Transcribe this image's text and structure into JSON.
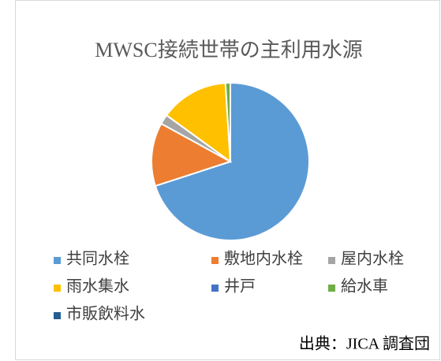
{
  "chart_data": {
    "type": "pie",
    "title": "MWSC接続世帯の主利用水源",
    "categories": [
      "共同水栓",
      "敷地内水栓",
      "屋内水栓",
      "雨水集水",
      "井戸",
      "給水車",
      "市販飲料水"
    ],
    "values": [
      70,
      13,
      2,
      14,
      0,
      1,
      0
    ],
    "colors": [
      "#5b9bd5",
      "#ed7d31",
      "#a5a5a5",
      "#ffc000",
      "#4472c4",
      "#70ad47",
      "#255e91"
    ],
    "source": "出典：JICA 調査団"
  }
}
